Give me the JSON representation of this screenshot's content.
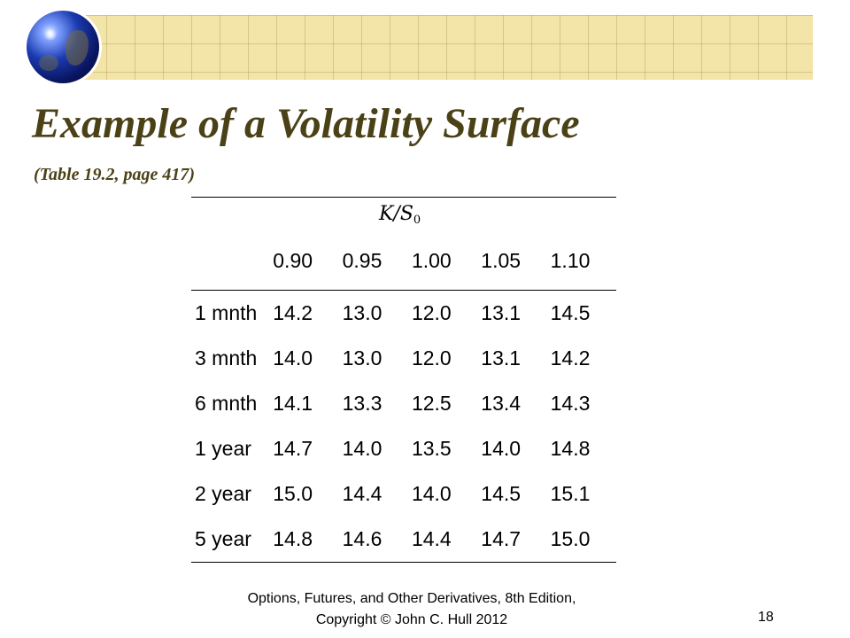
{
  "slide": {
    "title": "Example of a Volatility Surface",
    "subtitle": "(Table 19.2, page 417)",
    "page_number": "18",
    "footer_line1": "Options, Futures, and Other Derivatives, 8th Edition,",
    "footer_line2": "Copyright © John  C. Hull 2012"
  },
  "table": {
    "header_symbol": "K/S",
    "header_subscript": "0",
    "strikes": [
      "0.90",
      "0.95",
      "1.00",
      "1.05",
      "1.10"
    ],
    "rows": [
      {
        "label": "1 mnth",
        "values": [
          "14.2",
          "13.0",
          "12.0",
          "13.1",
          "14.5"
        ]
      },
      {
        "label": "3 mnth",
        "values": [
          "14.0",
          "13.0",
          "12.0",
          "13.1",
          "14.2"
        ]
      },
      {
        "label": "6 mnth",
        "values": [
          "14.1",
          "13.3",
          "12.5",
          "13.4",
          "14.3"
        ]
      },
      {
        "label": "1 year",
        "values": [
          "14.7",
          "14.0",
          "13.5",
          "14.0",
          "14.8"
        ]
      },
      {
        "label": "2 year",
        "values": [
          "15.0",
          "14.4",
          "14.0",
          "14.5",
          "15.1"
        ]
      },
      {
        "label": "5 year",
        "values": [
          "14.8",
          "14.6",
          "14.4",
          "14.7",
          "15.0"
        ]
      }
    ]
  },
  "colors": {
    "title": "#4a4117",
    "banner": "#f3e4a8"
  }
}
